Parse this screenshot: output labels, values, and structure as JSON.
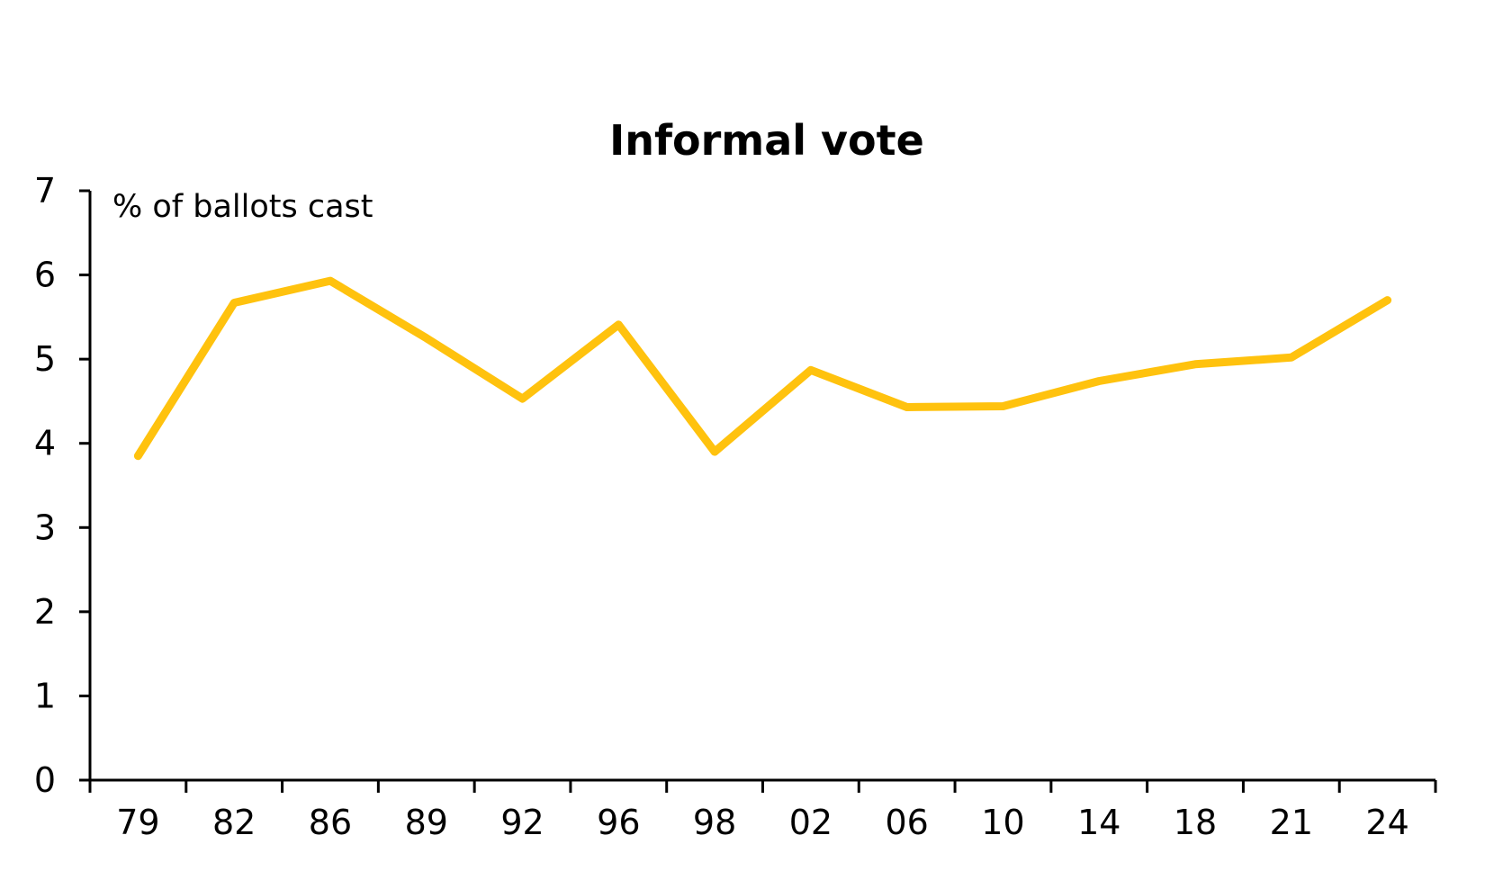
{
  "chart_data": {
    "type": "line",
    "title": "Informal vote",
    "unit_label": "% of ballots cast",
    "categories": [
      "79",
      "82",
      "86",
      "89",
      "92",
      "96",
      "98",
      "02",
      "06",
      "10",
      "14",
      "18",
      "21",
      "24"
    ],
    "series": [
      {
        "name": "",
        "color": "#FFC20E",
        "values": [
          3.85,
          5.67,
          5.93,
          5.25,
          4.53,
          5.41,
          3.9,
          4.87,
          4.43,
          4.44,
          4.74,
          4.94,
          5.02,
          5.7
        ]
      }
    ],
    "ylim": [
      0,
      7
    ],
    "yticks": [
      "0",
      "1",
      "2",
      "3",
      "4",
      "5",
      "6",
      "7"
    ],
    "xlabel": "",
    "ylabel": "",
    "grid": false,
    "legend": "none"
  }
}
